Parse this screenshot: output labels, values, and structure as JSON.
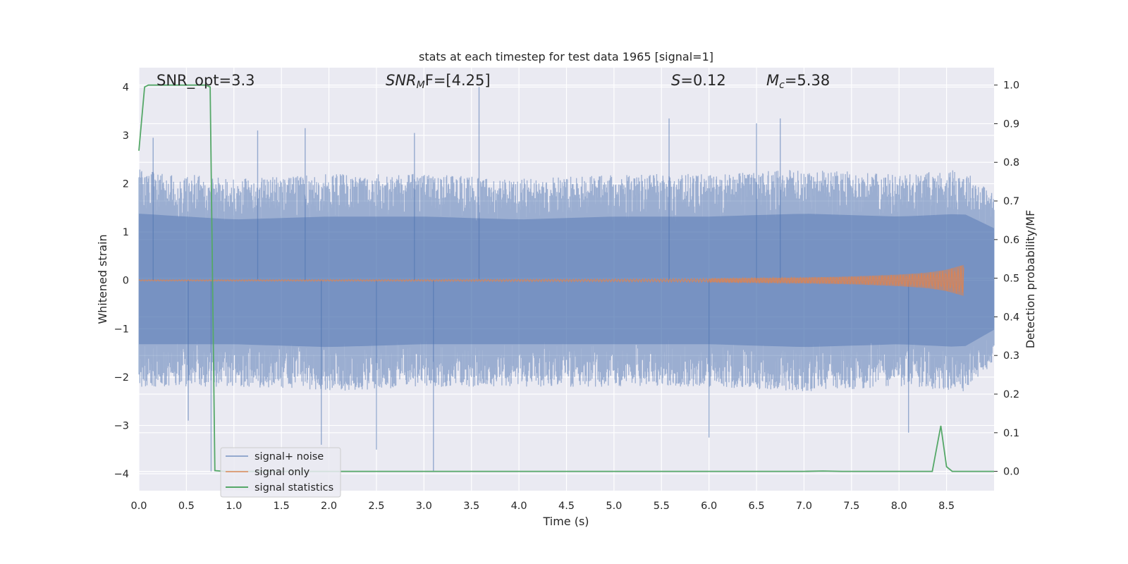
{
  "chart_data": {
    "type": "line",
    "title": "stats at each timestep for test data 1965 [signal=1]",
    "xlabel": "Time (s)",
    "ylabel_left": "Whitened strain",
    "ylabel_right": "Detection probability/MF",
    "xlim": [
      0,
      9.0
    ],
    "ylim_left": [
      -4.35,
      4.4
    ],
    "ylim_right": [
      -0.05,
      1.045
    ],
    "x_ticks": [
      "0.0",
      "0.5",
      "1.0",
      "1.5",
      "2.0",
      "2.5",
      "3.0",
      "3.5",
      "4.0",
      "4.5",
      "5.0",
      "5.5",
      "6.0",
      "6.5",
      "7.0",
      "7.5",
      "8.0",
      "8.5"
    ],
    "y_ticks_left": [
      "4",
      "3",
      "2",
      "1",
      "0",
      "−1",
      "−2",
      "−3",
      "−4"
    ],
    "y_ticks_right": [
      "1.0",
      "0.9",
      "0.8",
      "0.7",
      "0.6",
      "0.5",
      "0.4",
      "0.3",
      "0.2",
      "0.1",
      "0.0"
    ],
    "grid": true,
    "legend_position": "lower-left",
    "annotations": {
      "snr_opt": "SNR_opt=3.3",
      "snr_mf_main": "SNR",
      "snr_mf_sub": "M",
      "snr_mf_rest": "F=[4.25]",
      "s_main": "S",
      "s_rest": "=0.12",
      "mc_main": "M",
      "mc_sub": "c",
      "mc_rest": "=5.38"
    },
    "series": [
      {
        "name": "signal+ noise",
        "axis": "left",
        "color": "#4c72b0",
        "note_envelope": {
          "x": [
            0.0,
            1.0,
            2.0,
            3.0,
            4.0,
            5.0,
            6.0,
            7.0,
            8.0,
            8.68,
            9.0
          ],
          "upper": [
            2.3,
            2.1,
            2.2,
            2.2,
            2.1,
            2.2,
            2.2,
            2.3,
            2.2,
            2.3,
            1.8
          ],
          "lower": [
            -2.2,
            -2.2,
            -2.3,
            -2.2,
            -2.2,
            -2.2,
            -2.2,
            -2.3,
            -2.2,
            -2.3,
            -1.7
          ]
        },
        "peaks": [
          {
            "x": 0.15,
            "y": 2.95
          },
          {
            "x": 1.25,
            "y": 3.1
          },
          {
            "x": 1.75,
            "y": 3.15
          },
          {
            "x": 2.9,
            "y": 3.05
          },
          {
            "x": 3.58,
            "y": 4.0
          },
          {
            "x": 5.58,
            "y": 3.35
          },
          {
            "x": 6.5,
            "y": 3.25
          },
          {
            "x": 6.75,
            "y": 3.35
          },
          {
            "x": 0.52,
            "y": -2.9
          },
          {
            "x": 1.92,
            "y": -3.4
          },
          {
            "x": 2.5,
            "y": -3.5
          },
          {
            "x": 3.1,
            "y": -3.95
          },
          {
            "x": 6.0,
            "y": -3.25
          },
          {
            "x": 8.1,
            "y": -3.15
          },
          {
            "x": 0.76,
            "y": -3.95
          }
        ]
      },
      {
        "name": "signal only",
        "axis": "left",
        "color": "#dd8452",
        "note_envelope": {
          "x": [
            0.0,
            3.0,
            5.0,
            6.0,
            7.0,
            7.5,
            8.0,
            8.3,
            8.5,
            8.68
          ],
          "amplitude": [
            0.015,
            0.02,
            0.03,
            0.04,
            0.06,
            0.08,
            0.12,
            0.16,
            0.22,
            0.32
          ]
        }
      },
      {
        "name": "signal statistics",
        "axis": "right",
        "color": "#55a868",
        "x": [
          0.0,
          0.06,
          0.1,
          0.2,
          0.4,
          0.6,
          0.7,
          0.75,
          0.8,
          0.9,
          1.5,
          3.0,
          5.0,
          7.0,
          7.2,
          7.4,
          8.0,
          8.35,
          8.44,
          8.5,
          8.56,
          9.0
        ],
        "y": [
          0.83,
          0.995,
          1.0,
          1.0,
          1.0,
          1.0,
          1.0,
          0.995,
          0.002,
          0.0,
          0.0,
          0.0,
          0.0,
          0.0,
          0.001,
          0.0,
          0.0,
          0.0,
          0.118,
          0.012,
          0.0,
          0.0
        ]
      }
    ]
  }
}
